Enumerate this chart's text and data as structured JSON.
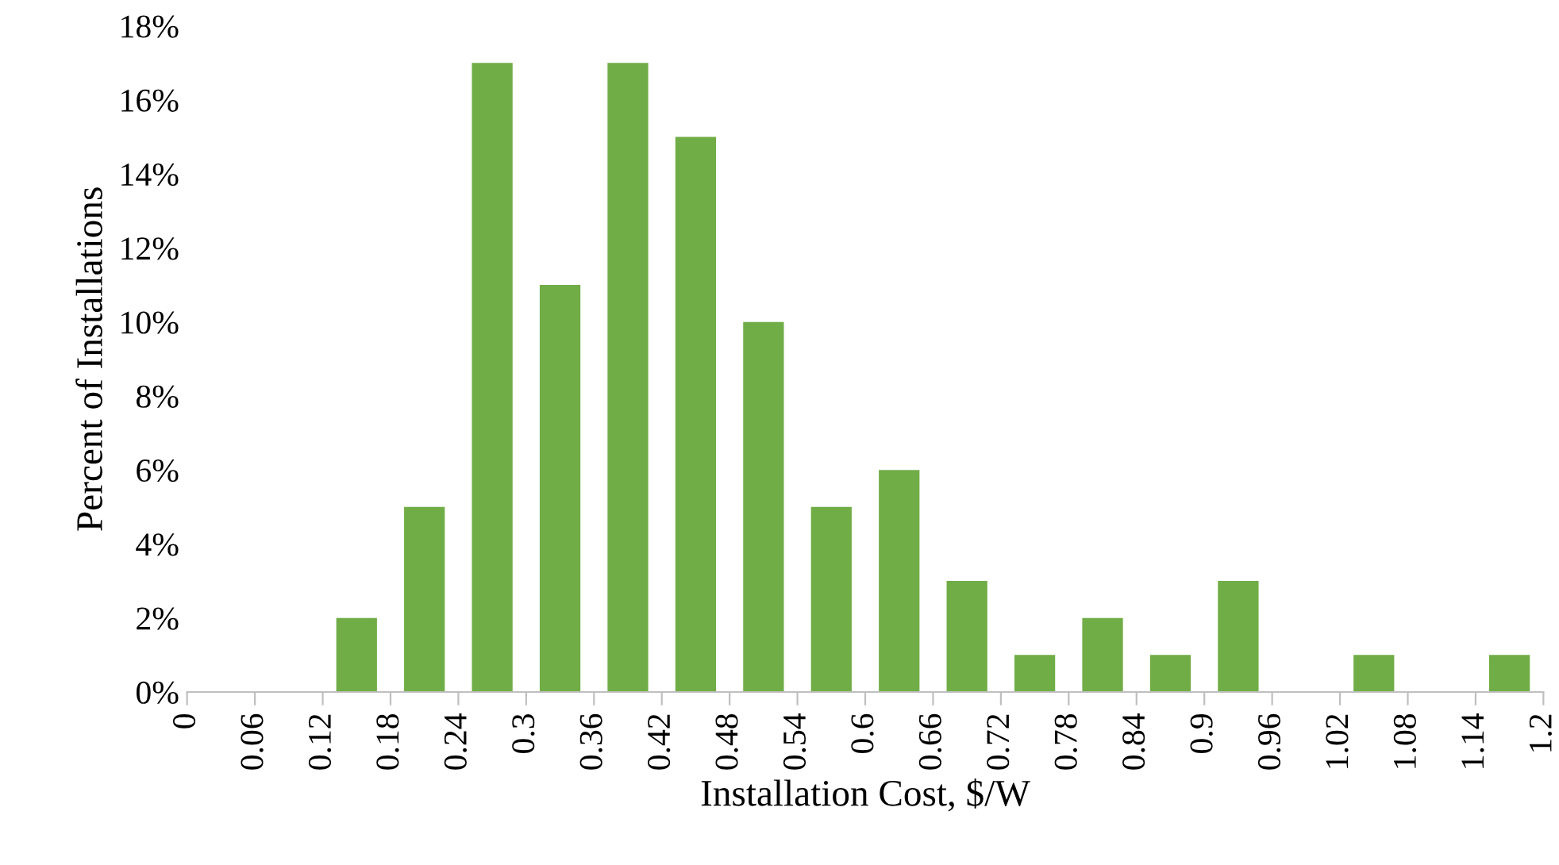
{
  "chart_data": {
    "type": "histogram",
    "xlabel": "Installation Cost, $/W",
    "ylabel": "Percent of Installations",
    "bins": [
      0,
      0.06,
      0.12,
      0.18,
      0.24,
      0.3,
      0.36,
      0.42,
      0.48,
      0.54,
      0.6,
      0.66,
      0.72,
      0.78,
      0.84,
      0.9,
      0.96,
      1.02,
      1.08,
      1.14,
      1.2
    ],
    "values": [
      0,
      0,
      2,
      5,
      17,
      11,
      17,
      15,
      10,
      5,
      6,
      3,
      1,
      2,
      1,
      3,
      0,
      1,
      0,
      1
    ],
    "color": "#70ad47",
    "xlim": [
      0,
      1.2
    ],
    "xticks": [
      0,
      0.06,
      0.12,
      0.18,
      0.24,
      0.3,
      0.36,
      0.42,
      0.48,
      0.54,
      0.6,
      0.66,
      0.72,
      0.78,
      0.84,
      0.9,
      0.96,
      1.02,
      1.08,
      1.14,
      1.2
    ],
    "ylim": [
      0,
      18
    ],
    "yticks": [
      {
        "value": 0,
        "label": "0%"
      },
      {
        "value": 2,
        "label": "2%"
      },
      {
        "value": 4,
        "label": "4%"
      },
      {
        "value": 6,
        "label": "6%"
      },
      {
        "value": 8,
        "label": "8%"
      },
      {
        "value": 10,
        "label": "10%"
      },
      {
        "value": 12,
        "label": "12%"
      },
      {
        "value": 14,
        "label": "14%"
      },
      {
        "value": 16,
        "label": "16%"
      },
      {
        "value": 18,
        "label": "18%"
      }
    ],
    "grid": false,
    "legend": false
  }
}
